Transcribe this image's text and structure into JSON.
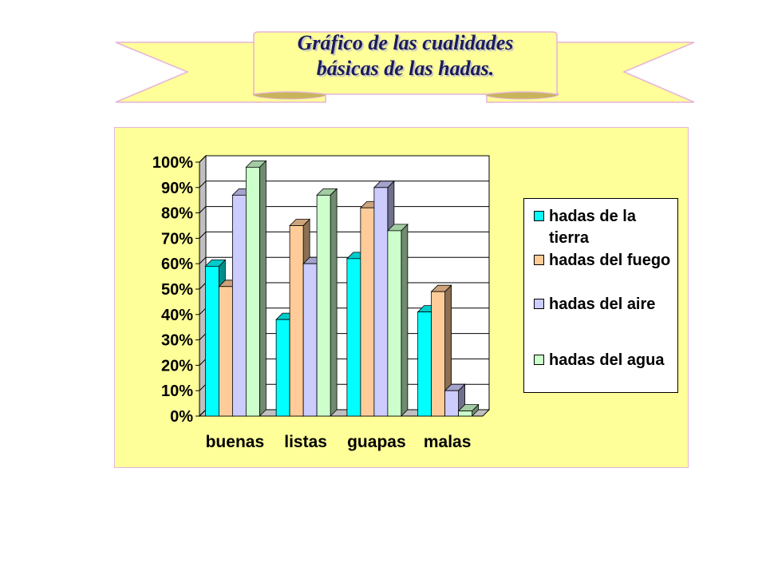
{
  "banner": {
    "title_line1": "Gráfico de las cualidades",
    "title_line2": "básicas de las hadas."
  },
  "colors": {
    "banner_fill": "#ffff99",
    "banner_border": "#e6b4d9",
    "panel_fill": "#ffff99",
    "title_text": "#1b1b5e"
  },
  "chart_data": {
    "type": "bar",
    "style": "3d-clustered",
    "categories": [
      "buenas",
      "listas",
      "guapas",
      "malas"
    ],
    "series": [
      {
        "name": "hadas de la tierra",
        "values": [
          59,
          38,
          62,
          41
        ],
        "color": "#00ffff"
      },
      {
        "name": "hadas del fuego",
        "values": [
          51,
          75,
          82,
          49
        ],
        "color": "#ffcc99"
      },
      {
        "name": "hadas del aire",
        "values": [
          87,
          60,
          90,
          10
        ],
        "color": "#ccccff"
      },
      {
        "name": "hadas del agua",
        "values": [
          98,
          87,
          73,
          2
        ],
        "color": "#ccffcc"
      }
    ],
    "y_ticks": [
      "0%",
      "10%",
      "20%",
      "30%",
      "40%",
      "50%",
      "60%",
      "70%",
      "80%",
      "90%",
      "100%"
    ],
    "ylim": [
      0,
      100
    ],
    "grid": true,
    "legend_position": "right"
  }
}
